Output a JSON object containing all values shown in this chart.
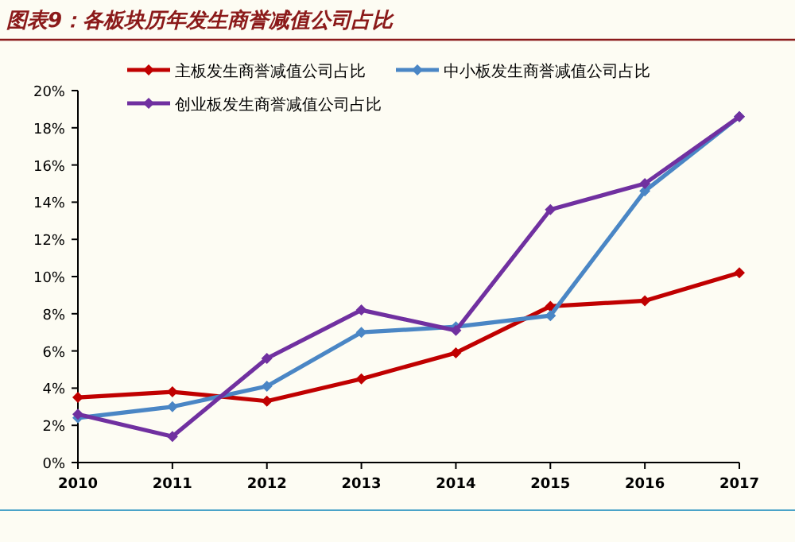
{
  "chart_data": {
    "type": "line",
    "title": "图表9：各板块历年发生商誉减值公司占比",
    "x": [
      2010,
      2011,
      2012,
      2013,
      2014,
      2015,
      2016,
      2017
    ],
    "xlim": [
      2010,
      2017
    ],
    "xticks": [
      2010,
      2011,
      2012,
      2013,
      2014,
      2015,
      2016,
      2017
    ],
    "ylim": [
      0,
      20
    ],
    "yticks": [
      {
        "value": 0,
        "label": "0%"
      },
      {
        "value": 2,
        "label": "2%"
      },
      {
        "value": 4,
        "label": "4%"
      },
      {
        "value": 6,
        "label": "6%"
      },
      {
        "value": 8,
        "label": "8%"
      },
      {
        "value": 10,
        "label": "10%"
      },
      {
        "value": 12,
        "label": "12%"
      },
      {
        "value": 14,
        "label": "14%"
      },
      {
        "value": 16,
        "label": "16%"
      },
      {
        "value": 18,
        "label": "18%"
      },
      {
        "value": 20,
        "label": "20%"
      }
    ],
    "series": [
      {
        "name": "主板发生商誉减值公司占比",
        "color": "#c00000",
        "values": [
          3.5,
          3.8,
          3.3,
          4.5,
          5.9,
          8.4,
          8.7,
          10.2
        ]
      },
      {
        "name": "中小板发生商誉减值公司占比",
        "color": "#4a86c5",
        "values": [
          2.4,
          3.0,
          4.1,
          7.0,
          7.3,
          7.9,
          14.6,
          18.6
        ]
      },
      {
        "name": "创业板发生商誉减值公司占比",
        "color": "#7030a0",
        "values": [
          2.6,
          1.4,
          5.6,
          8.2,
          7.1,
          13.6,
          15.0,
          18.6
        ]
      }
    ],
    "marker": "diamond",
    "line_style": "solid",
    "grid": false,
    "legend": "top"
  }
}
